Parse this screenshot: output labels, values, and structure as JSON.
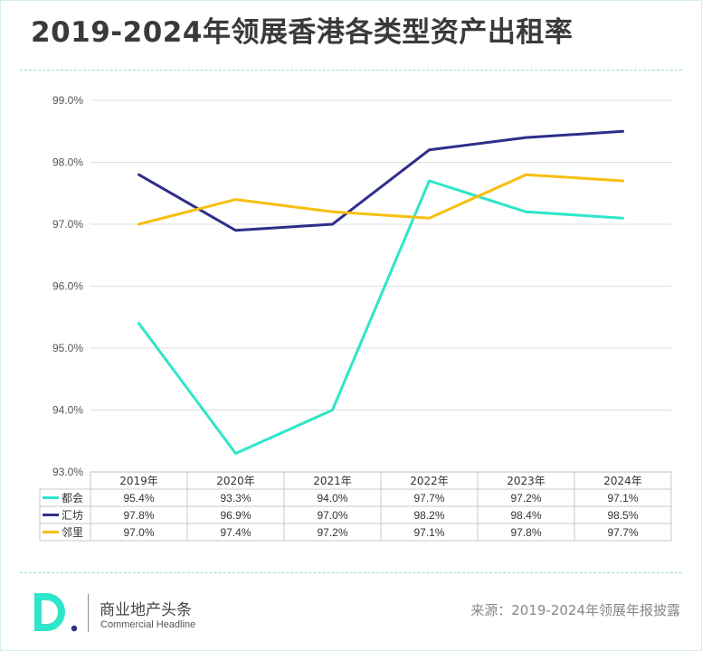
{
  "header": {
    "title": "2019-2024年领展香港各类型资产出租率"
  },
  "footer": {
    "brand_cn": "商业地产头条",
    "brand_en": "Commercial Headline",
    "source": "来源：2019-2024年领展年报披露"
  },
  "chart_data": {
    "type": "line",
    "categories": [
      "2019年",
      "2020年",
      "2021年",
      "2022年",
      "2023年",
      "2024年"
    ],
    "ylim": [
      93.0,
      99.0
    ],
    "yticks": [
      "93.0%",
      "94.0%",
      "95.0%",
      "96.0%",
      "97.0%",
      "98.0%",
      "99.0%"
    ],
    "ytick_values": [
      93,
      94,
      95,
      96,
      97,
      98,
      99
    ],
    "grid": true,
    "legend": "data-table",
    "series": [
      {
        "name": "都会",
        "color": "#2ee6c9",
        "values": [
          95.4,
          93.3,
          94.0,
          97.7,
          97.2,
          97.1
        ],
        "labels": [
          "95.4%",
          "93.3%",
          "94.0%",
          "97.7%",
          "97.2%",
          "97.1%"
        ]
      },
      {
        "name": "汇坊",
        "color": "#2e2e8a",
        "values": [
          97.8,
          96.9,
          97.0,
          98.2,
          98.4,
          98.5
        ],
        "labels": [
          "97.8%",
          "96.9%",
          "97.0%",
          "98.2%",
          "98.4%",
          "98.5%"
        ]
      },
      {
        "name": "邻里",
        "color": "#f7bf0f",
        "values": [
          97.0,
          97.4,
          97.2,
          97.1,
          97.8,
          97.7
        ],
        "labels": [
          "97.0%",
          "97.4%",
          "97.2%",
          "97.1%",
          "97.8%",
          "97.7%"
        ]
      }
    ]
  }
}
